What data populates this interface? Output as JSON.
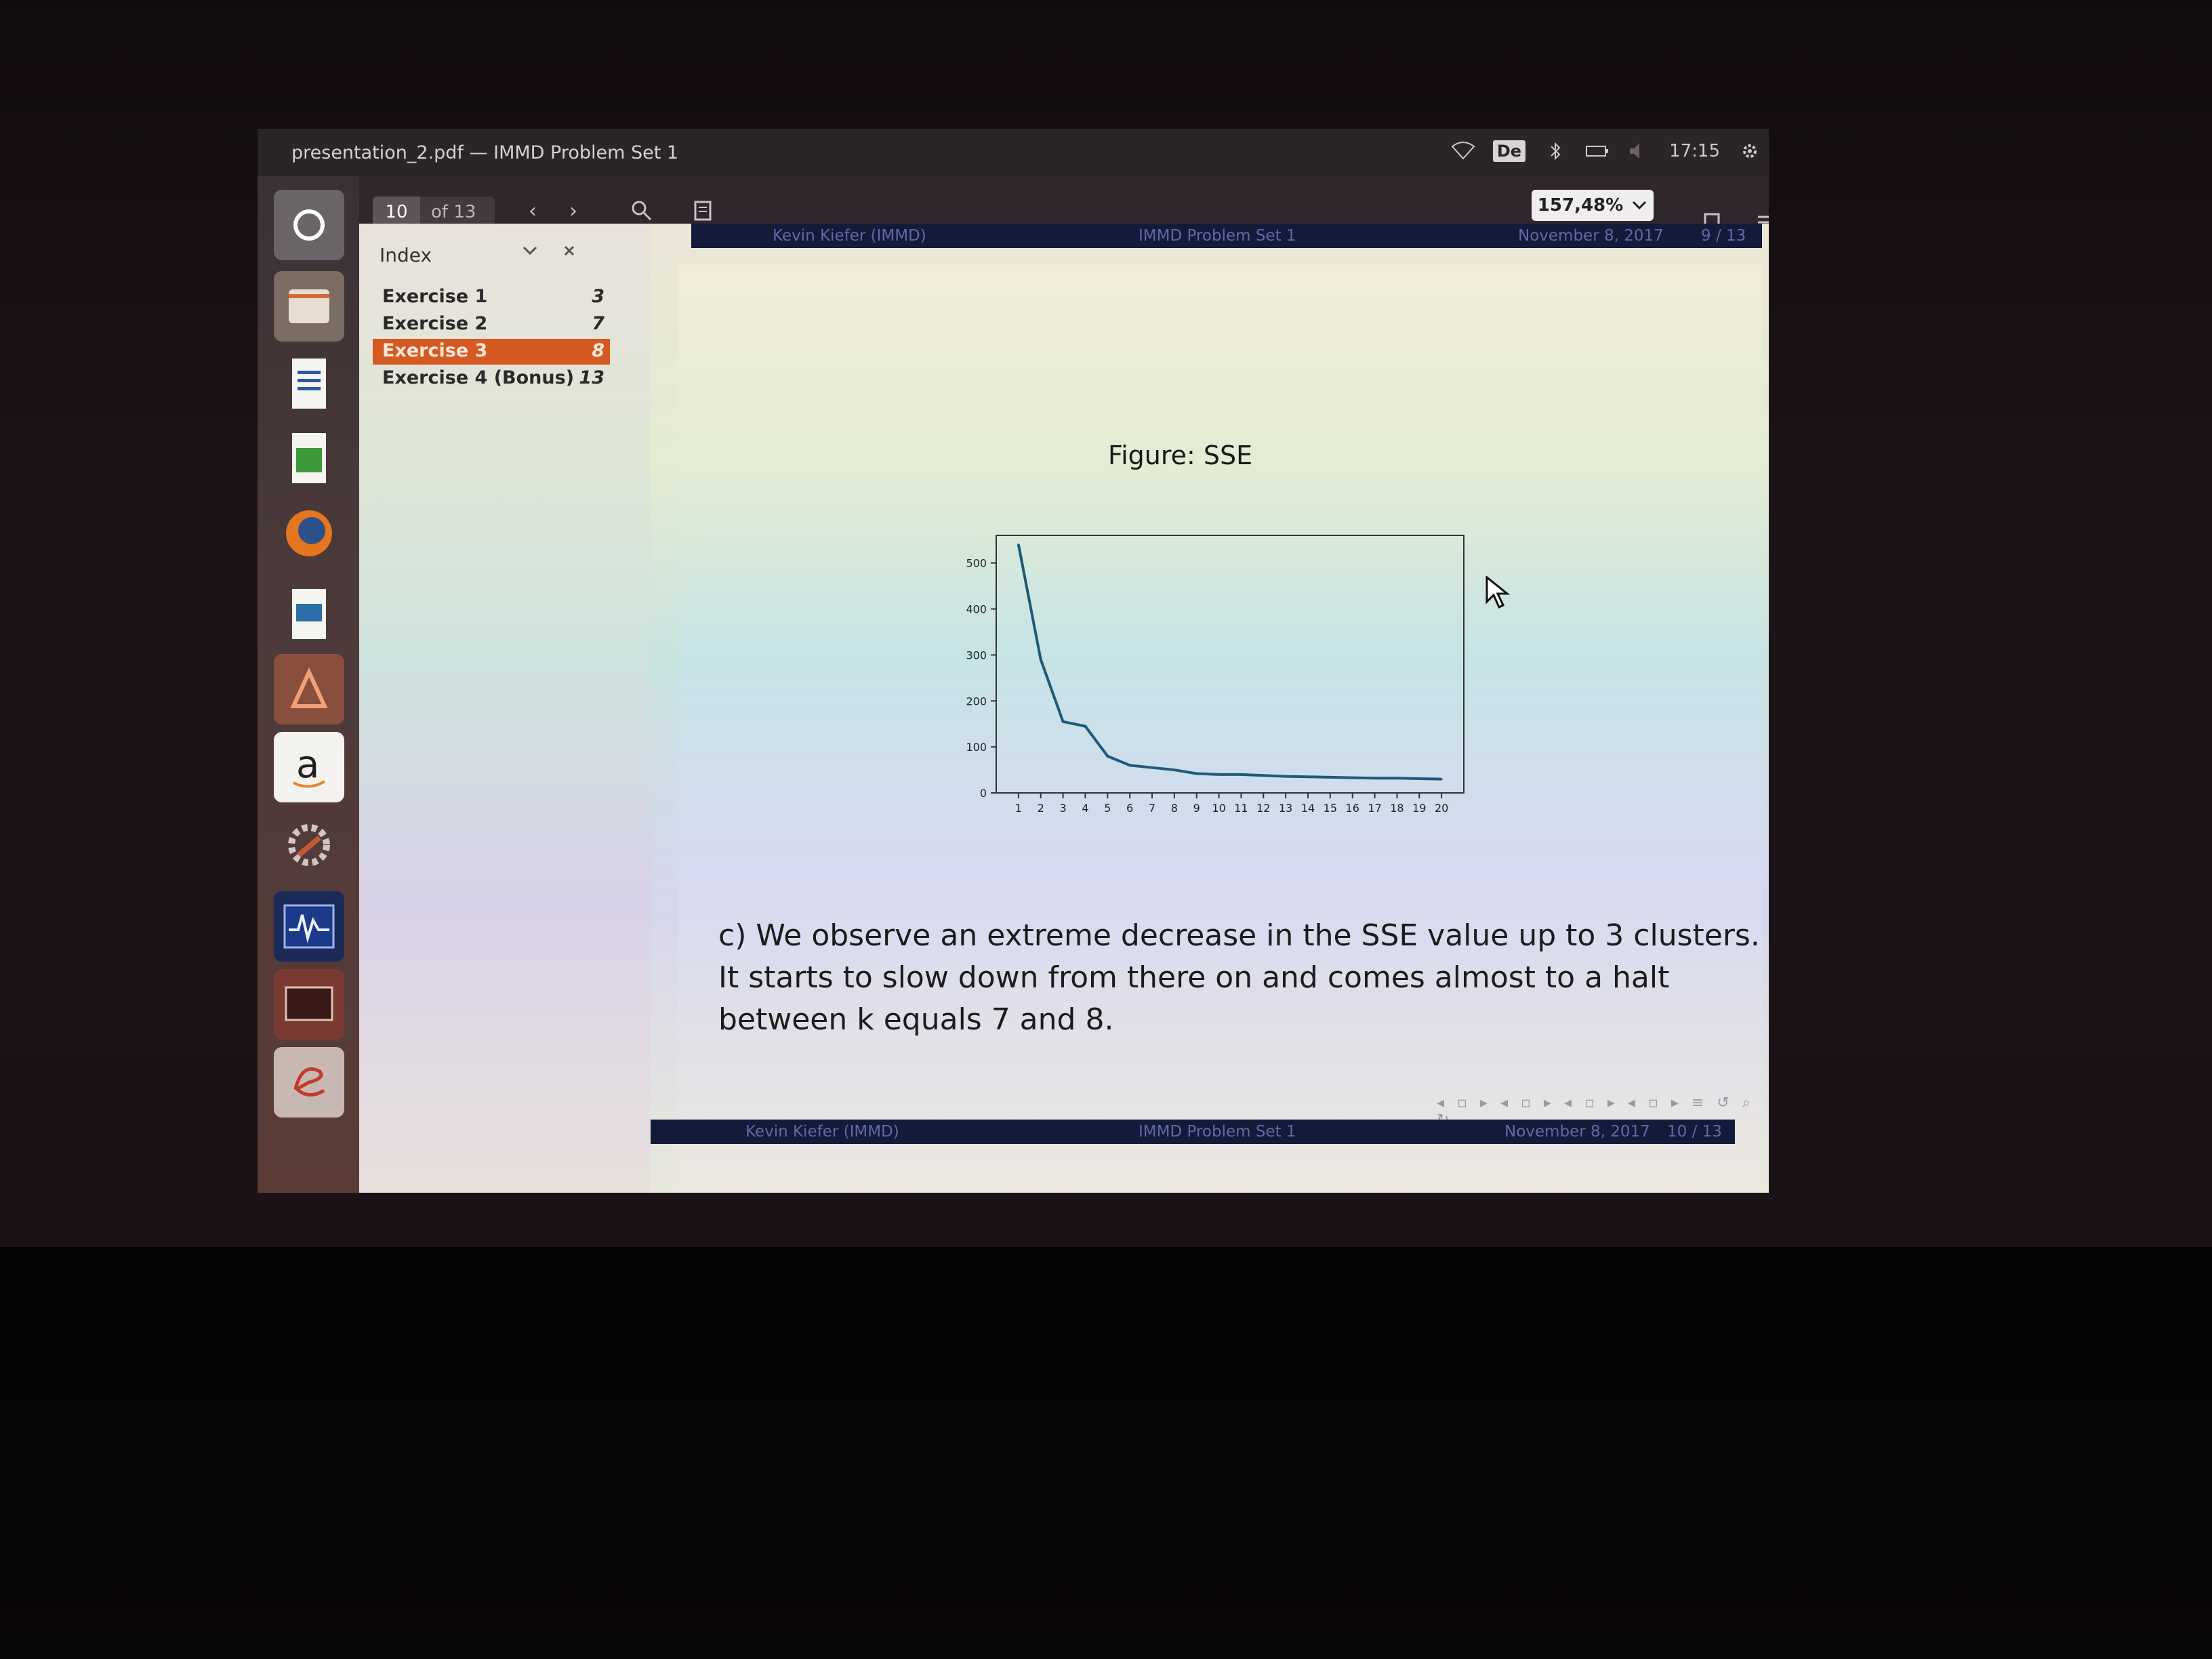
{
  "window": {
    "title": "presentation_2.pdf — IMMD Problem Set 1"
  },
  "tray": {
    "keyboard_layout": "De",
    "clock": "17:15"
  },
  "toolbar": {
    "current_page": "10",
    "total_pages": "of 13",
    "zoom": "157,48%"
  },
  "sidebar": {
    "header": "Index",
    "items": [
      {
        "label": "Exercise 1",
        "page": "3"
      },
      {
        "label": "Exercise 2",
        "page": "7"
      },
      {
        "label": "Exercise 3",
        "page": "8"
      },
      {
        "label": "Exercise 4 (Bonus)",
        "page": "13"
      }
    ]
  },
  "slide_prev": {
    "author": "Kevin Kiefer  (IMMD)",
    "title": "IMMD Problem Set 1",
    "date": "November 8, 2017",
    "pages": "9 / 13"
  },
  "slide": {
    "figure_caption": "Figure: SSE",
    "body": "c) We observe an extreme decrease in the SSE value up to 3 clusters. It starts to slow down from there on and comes almost to a halt between k equals 7 and 8.",
    "footer_author": "Kevin Kiefer  (IMMD)",
    "footer_title": "IMMD Problem Set 1",
    "footer_date": "November 8, 2017",
    "footer_pages": "10 / 13"
  },
  "chart_data": {
    "type": "line",
    "title": "",
    "xlabel": "",
    "ylabel": "",
    "x": [
      1,
      2,
      3,
      4,
      5,
      6,
      7,
      8,
      9,
      10,
      11,
      12,
      13,
      14,
      15,
      16,
      17,
      18,
      19,
      20
    ],
    "values": [
      540,
      290,
      155,
      145,
      80,
      60,
      55,
      50,
      42,
      40,
      40,
      38,
      36,
      35,
      34,
      33,
      32,
      32,
      31,
      30
    ],
    "yticks": [
      "0",
      "100",
      "200",
      "300",
      "400",
      "500"
    ],
    "xticks": [
      "1",
      "2",
      "3",
      "4",
      "5",
      "6",
      "7",
      "8",
      "9",
      "10",
      "11",
      "12",
      "13",
      "14",
      "15",
      "16",
      "17",
      "18",
      "19",
      "20"
    ],
    "ylim": [
      0,
      560
    ],
    "xlim": [
      0,
      21
    ]
  }
}
